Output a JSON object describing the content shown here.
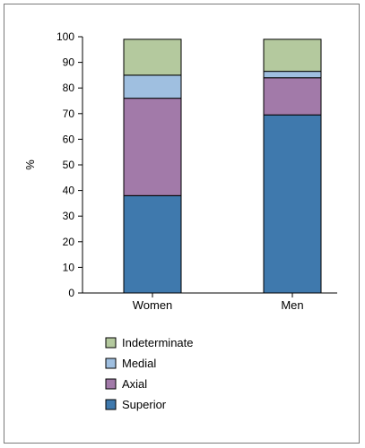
{
  "chart_data": {
    "type": "bar",
    "stacked": true,
    "title": "",
    "xlabel": "",
    "ylabel": "%",
    "ylim": [
      0,
      100
    ],
    "yticks": [
      0,
      10,
      20,
      30,
      40,
      50,
      60,
      70,
      80,
      90,
      100
    ],
    "categories": [
      "Women",
      "Men"
    ],
    "series": [
      {
        "name": "Superior",
        "values": [
          38,
          69.5
        ],
        "color": "#3f79ad"
      },
      {
        "name": "Axial",
        "values": [
          38,
          14.5
        ],
        "color": "#a27aa9"
      },
      {
        "name": "Medial",
        "values": [
          9,
          2.5
        ],
        "color": "#9fbfe0"
      },
      {
        "name": "Indeterminate",
        "values": [
          14,
          12.5
        ],
        "color": "#b4c99e"
      }
    ],
    "legend": {
      "placement": "bottom-left",
      "order": [
        "Indeterminate",
        "Medial",
        "Axial",
        "Superior"
      ]
    },
    "grid": false
  }
}
